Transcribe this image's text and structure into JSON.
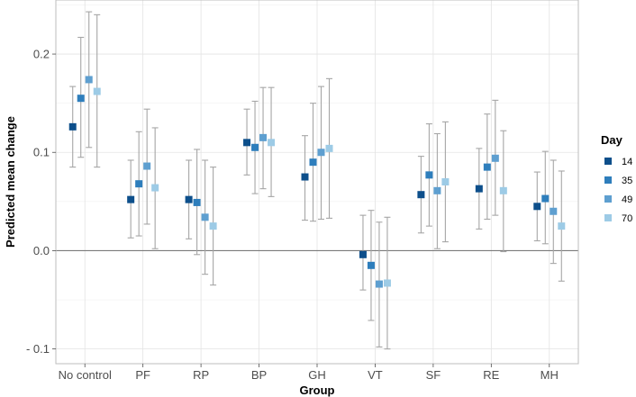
{
  "chart_data": {
    "type": "scatter",
    "xlabel": "Group",
    "ylabel": "Predicted mean change",
    "ylim": [
      -0.115,
      0.255
    ],
    "yticks": [
      -0.1,
      0.0,
      0.1,
      0.2
    ],
    "ytick_labels": [
      "- 0.1",
      "0.0",
      "0.1",
      "0.2"
    ],
    "categories": [
      "No control",
      "PF",
      "RP",
      "BP",
      "GH",
      "VT",
      "SF",
      "RE",
      "MH"
    ],
    "reference_line": 0.0,
    "grid": true,
    "legend": {
      "title": "Day",
      "position": "right"
    },
    "series": [
      {
        "name": "14",
        "color": "#0d4f8b",
        "values": [
          0.126,
          0.052,
          0.052,
          0.11,
          0.075,
          -0.004,
          0.057,
          0.063,
          0.045
        ],
        "lower": [
          0.085,
          0.013,
          0.012,
          0.077,
          0.031,
          -0.04,
          0.018,
          0.022,
          0.01
        ],
        "upper": [
          0.167,
          0.092,
          0.092,
          0.144,
          0.117,
          0.036,
          0.096,
          0.104,
          0.08
        ]
      },
      {
        "name": "35",
        "color": "#2e7ebc",
        "values": [
          0.155,
          0.068,
          0.049,
          0.105,
          0.09,
          -0.015,
          0.077,
          0.085,
          0.053
        ],
        "lower": [
          0.095,
          0.015,
          -0.004,
          0.058,
          0.03,
          -0.071,
          0.025,
          0.032,
          0.007
        ],
        "upper": [
          0.217,
          0.121,
          0.103,
          0.152,
          0.15,
          0.041,
          0.129,
          0.139,
          0.101
        ]
      },
      {
        "name": "49",
        "color": "#5e9fd0",
        "values": [
          0.174,
          0.086,
          0.034,
          0.115,
          0.1,
          -0.034,
          0.061,
          0.094,
          0.04
        ],
        "lower": [
          0.105,
          0.027,
          -0.024,
          0.063,
          0.032,
          -0.098,
          0.002,
          0.036,
          -0.013
        ],
        "upper": [
          0.243,
          0.144,
          0.092,
          0.166,
          0.167,
          0.029,
          0.119,
          0.153,
          0.092
        ]
      },
      {
        "name": "70",
        "color": "#9dcbe6",
        "values": [
          0.162,
          0.064,
          0.025,
          0.11,
          0.104,
          -0.033,
          0.07,
          0.061,
          0.025
        ],
        "lower": [
          0.085,
          0.002,
          -0.035,
          0.055,
          0.033,
          -0.1,
          0.009,
          -0.001,
          -0.031
        ],
        "upper": [
          0.24,
          0.125,
          0.085,
          0.166,
          0.175,
          0.034,
          0.131,
          0.122,
          0.081
        ]
      }
    ]
  }
}
